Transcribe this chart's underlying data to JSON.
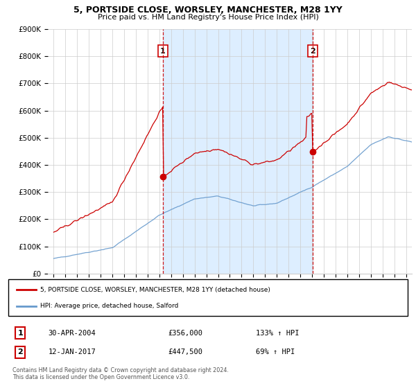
{
  "title": "5, PORTSIDE CLOSE, WORSLEY, MANCHESTER, M28 1YY",
  "subtitle": "Price paid vs. HM Land Registry's House Price Index (HPI)",
  "legend_line1": "5, PORTSIDE CLOSE, WORSLEY, MANCHESTER, M28 1YY (detached house)",
  "legend_line2": "HPI: Average price, detached house, Salford",
  "annotation1_label": "1",
  "annotation1_date": "30-APR-2004",
  "annotation1_price": "£356,000",
  "annotation1_hpi": "133% ↑ HPI",
  "annotation2_label": "2",
  "annotation2_date": "12-JAN-2017",
  "annotation2_price": "£447,500",
  "annotation2_hpi": "69% ↑ HPI",
  "footer": "Contains HM Land Registry data © Crown copyright and database right 2024.\nThis data is licensed under the Open Government Licence v3.0.",
  "red_color": "#cc0000",
  "blue_color": "#6699cc",
  "blue_fill_color": "#ddeeff",
  "marker1_x": 2004.29,
  "marker1_y": 356000,
  "marker2_x": 2017.04,
  "marker2_y": 447500,
  "ylim": [
    0,
    900000
  ],
  "xlim_start": 1994.5,
  "xlim_end": 2025.5,
  "background_color": "#f0f4f8"
}
